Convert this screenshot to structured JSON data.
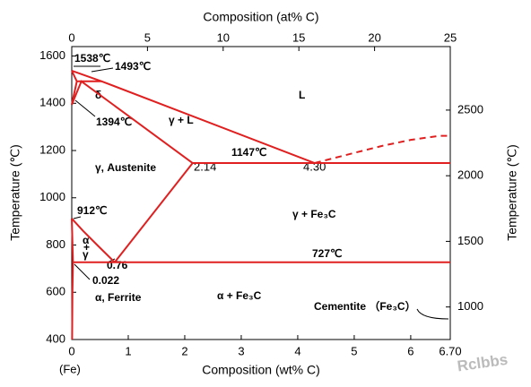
{
  "chart_data": {
    "type": "phase-diagram",
    "x_title": "Composition (wt% C)",
    "x2_title": "Composition (at% C)",
    "y_title": "Temperature (℃)",
    "y2_title": "Temperature (℃)",
    "xlim": [
      0,
      6.7
    ],
    "xticks": [
      0,
      1,
      2,
      3,
      4,
      5,
      6,
      {
        "value": 6.7,
        "label": "6.70"
      }
    ],
    "x2lim": [
      0,
      25
    ],
    "x2ticks": [
      0,
      5,
      10,
      15,
      20,
      25
    ],
    "ylim": [
      400,
      1640
    ],
    "yticks": [
      400,
      600,
      800,
      1000,
      1200,
      1400,
      1600
    ],
    "y2lim": [
      752,
      2984
    ],
    "y2ticks": [
      1000,
      1500,
      2000,
      2500
    ],
    "color": "#e02020",
    "lines": [
      {
        "x": [
          0,
          0.53,
          4.3
        ],
        "y": [
          1538,
          1493,
          1147
        ]
      },
      {
        "x": [
          4.3,
          5,
          5.5,
          6,
          6.5,
          6.7
        ],
        "y": [
          1147,
          1190,
          1220,
          1245,
          1262,
          1262
        ],
        "dashed": true
      },
      {
        "x": [
          0,
          0.09,
          0.53
        ],
        "y": [
          1538,
          1493,
          1493
        ]
      },
      {
        "x": [
          0,
          0.09
        ],
        "y": [
          1394,
          1493
        ]
      },
      {
        "x": [
          0,
          0.17,
          2.14
        ],
        "y": [
          1394,
          1493,
          1147
        ]
      },
      {
        "x": [
          2.14,
          6.7
        ],
        "y": [
          1147,
          1147
        ]
      },
      {
        "x": [
          0.76,
          2.14
        ],
        "y": [
          727,
          1147
        ]
      },
      {
        "x": [
          0,
          0.2,
          0.45,
          0.76
        ],
        "y": [
          912,
          860,
          800,
          727
        ]
      },
      {
        "x": [
          0,
          0.022
        ],
        "y": [
          912,
          727
        ]
      },
      {
        "x": [
          0.022,
          6.7
        ],
        "y": [
          727,
          727
        ]
      },
      {
        "x": [
          0.022,
          0.012,
          0.006
        ],
        "y": [
          727,
          600,
          400
        ]
      }
    ],
    "annotations": [
      "1538℃",
      "1493℃",
      "δ",
      "1394℃",
      "γ + L",
      "L",
      "1147℃",
      "γ, Austenite",
      "2.14",
      "4.30",
      "γ + Fe₃C",
      "912℃",
      "α",
      "+",
      "γ",
      "727℃",
      "0.76",
      "0.022",
      "α, Ferrite",
      "α + Fe₃C",
      "Cementite （Fe₃C）",
      "(Fe)",
      "Rclbbs"
    ]
  }
}
